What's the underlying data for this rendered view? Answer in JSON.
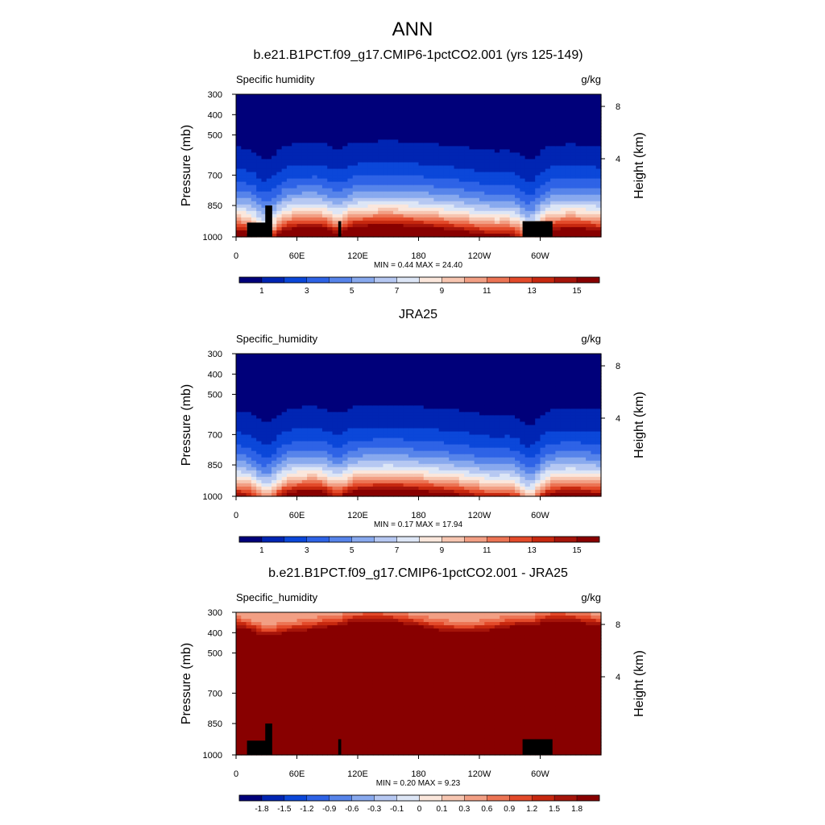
{
  "figure": {
    "title": "ANN"
  },
  "colormap": [
    "#00007a",
    "#0025b3",
    "#0b47d9",
    "#2e63e6",
    "#5784ea",
    "#88a9ee",
    "#b6c8f2",
    "#dde6f6",
    "#fbe7dc",
    "#f7c6b1",
    "#f29f84",
    "#ec7454",
    "#e34a2a",
    "#c7280f",
    "#a5140a",
    "#880000"
  ],
  "chart_data": [
    {
      "type": "heatmap",
      "title": "b.e21.B1PCT.f09_g17.CMIP6-1pctCO2.001 (yrs 125-149)",
      "variable_label": "Specific humidity",
      "units": "g/kg",
      "ylabel": "Pressure (mb)",
      "y2label": "Height (km)",
      "xticks": [
        "0",
        "60E",
        "120E",
        "180",
        "120W",
        "60W"
      ],
      "yticks": [
        "300",
        "400",
        "500",
        "700",
        "850",
        "1000"
      ],
      "y2ticks": [
        "8",
        "4"
      ],
      "stats_text": "MIN =   0.44  MAX =  24.40",
      "colorbar": {
        "labels": [
          "1",
          "3",
          "5",
          "7",
          "9",
          "11",
          "13",
          "15"
        ]
      },
      "field": {
        "base": 14.0,
        "sfc": 18,
        "profile": "exp",
        "mode": "q"
      }
    },
    {
      "type": "heatmap",
      "title": "JRA25",
      "variable_label": "Specific_humidity",
      "units": "g/kg",
      "ylabel": "Pressure (mb)",
      "y2label": "Height (km)",
      "xticks": [
        "0",
        "60E",
        "120E",
        "180",
        "120W",
        "60W"
      ],
      "yticks": [
        "300",
        "400",
        "500",
        "700",
        "850",
        "1000"
      ],
      "y2ticks": [
        "8",
        "4"
      ],
      "stats_text": "MIN =   0.17  MAX =  17.94",
      "colorbar": {
        "labels": [
          "1",
          "3",
          "5",
          "7",
          "9",
          "11",
          "13",
          "15"
        ]
      },
      "field": {
        "base": 10.0,
        "sfc": 15.5,
        "profile": "exp",
        "mode": "q"
      }
    },
    {
      "type": "heatmap",
      "title": "b.e21.B1PCT.f09_g17.CMIP6-1pctCO2.001 - JRA25",
      "variable_label": "Specific_humidity",
      "units": "g/kg",
      "ylabel": "Pressure (mb)",
      "y2label": "Height (km)",
      "xticks": [
        "0",
        "60E",
        "120E",
        "180",
        "120W",
        "60W"
      ],
      "yticks": [
        "300",
        "400",
        "500",
        "700",
        "850",
        "1000"
      ],
      "y2ticks": [
        "8",
        "4"
      ],
      "stats_text": "MIN =   0.20  MAX =   9.23",
      "colorbar": {
        "labels": [
          "-1.8",
          "-1.5",
          "-1.2",
          "-0.9",
          "-0.6",
          "-0.3",
          "-0.1",
          "0",
          "0.1",
          "0.3",
          "0.6",
          "0.9",
          "1.2",
          "1.5",
          "1.8"
        ]
      },
      "field": {
        "mode": "diff"
      }
    }
  ]
}
